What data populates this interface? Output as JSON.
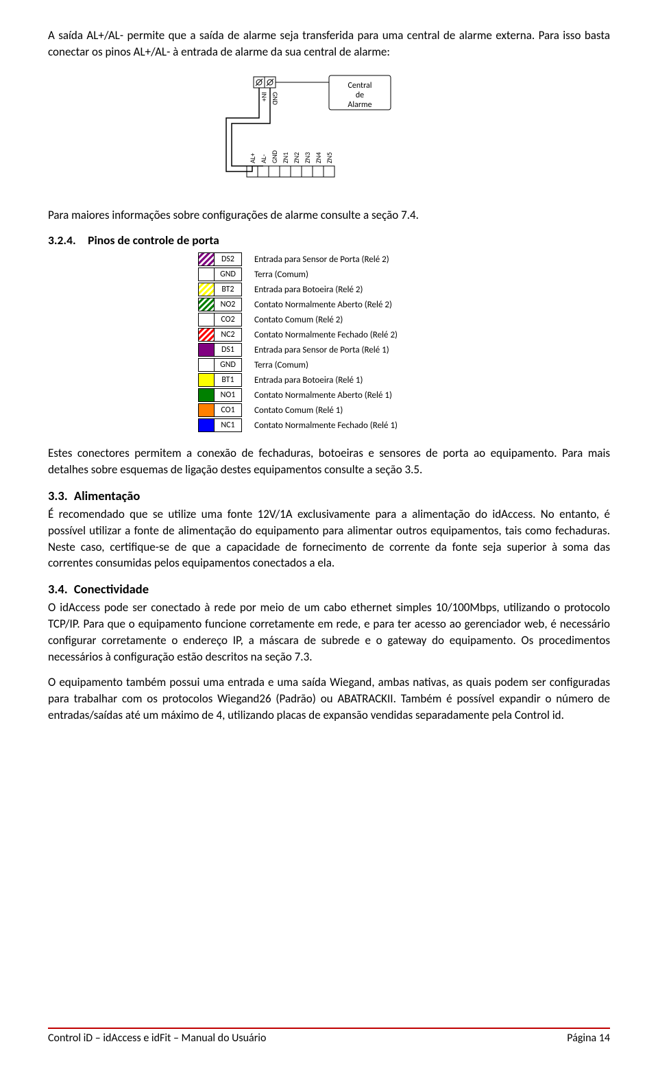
{
  "para1": "A saída AL+/AL- permite que a saída de alarme seja transferida para uma central de alarme externa. Para isso basta conectar os pinos AL+/AL- à entrada de alarme da sua central de alarme:",
  "diagram": {
    "central_label": "Central de Alarme",
    "top_pins": [
      "IN+",
      "GND"
    ],
    "bottom_pins": [
      "AL+",
      "AL-",
      "GND",
      "ZN1",
      "ZN2",
      "ZN3",
      "ZN4",
      "ZN5"
    ]
  },
  "para2": "Para maiores informações sobre configurações de alarme consulte a seção 7.4.",
  "h324": "3.2.4. Pinos de controle de porta",
  "pinout": [
    {
      "color": "#800080",
      "diag": true,
      "code": "DS2",
      "desc": "Entrada para Sensor de Porta (Relé 2)"
    },
    {
      "color": "#ffffff",
      "diag": false,
      "code": "GND",
      "desc": "Terra (Comum)"
    },
    {
      "color": "#ffff00",
      "diag": true,
      "code": "BT2",
      "desc": "Entrada para Botoeira (Relé 2)"
    },
    {
      "color": "#008000",
      "diag": true,
      "code": "NO2",
      "desc": "Contato Normalmente Aberto (Relé 2)"
    },
    {
      "color": "#ffffff",
      "diag": false,
      "code": "CO2",
      "desc": "Contato Comum (Relé 2)"
    },
    {
      "color": "#ff0000",
      "diag": true,
      "code": "NC2",
      "desc": "Contato Normalmente Fechado (Relé 2)"
    },
    {
      "color": "#800080",
      "diag": false,
      "code": "DS1",
      "desc": "Entrada para Sensor de Porta (Relé 1)"
    },
    {
      "color": "#ffffff",
      "diag": false,
      "code": "GND",
      "desc": "Terra (Comum)"
    },
    {
      "color": "#ffff00",
      "diag": false,
      "code": "BT1",
      "desc": "Entrada para Botoeira (Relé 1)"
    },
    {
      "color": "#008000",
      "diag": false,
      "code": "NO1",
      "desc": "Contato Normalmente Aberto (Relé 1)"
    },
    {
      "color": "#ff8000",
      "diag": false,
      "code": "CO1",
      "desc": "Contato Comum (Relé 1)"
    },
    {
      "color": "#0000ff",
      "diag": false,
      "code": "NC1",
      "desc": "Contato Normalmente Fechado (Relé 1)"
    }
  ],
  "para3": "Estes conectores permitem a conexão de fechaduras, botoeiras e sensores de porta ao equipamento. Para mais detalhes sobre esquemas de ligação destes equipamentos consulte a seção 3.5.",
  "h33": "3.3. Alimentação",
  "para4": "É recomendado que se utilize uma fonte 12V/1A exclusivamente para a alimentação do idAccess. No entanto, é possível utilizar a fonte de alimentação do equipamento para alimentar outros equipamentos, tais como fechaduras. Neste caso, certifique-se de que a capacidade de fornecimento de corrente da fonte seja superior à soma das correntes consumidas pelos equipamentos conectados a ela.",
  "h34": "3.4. Conectividade",
  "para5": "O idAccess pode ser conectado à rede por meio de um cabo ethernet simples 10/100Mbps, utilizando o protocolo TCP/IP. Para que o equipamento funcione corretamente em rede, e para ter acesso ao gerenciador web, é necessário configurar corretamente o endereço IP, a máscara de subrede e o gateway do equipamento. Os procedimentos necessários à configuração estão descritos na seção 7.3.",
  "para6": "O equipamento também possui uma entrada e uma saída Wiegand, ambas nativas, as quais podem ser configuradas para trabalhar com os protocolos Wiegand26 (Padrão) ou ABATRACKII. Também é possível expandir o número de entradas/saídas até um máximo de 4, utilizando placas de expansão vendidas separadamente pela Control id.",
  "footer_left": "Control iD – idAccess e idFit – Manual do Usuário",
  "footer_right": "Página 14"
}
